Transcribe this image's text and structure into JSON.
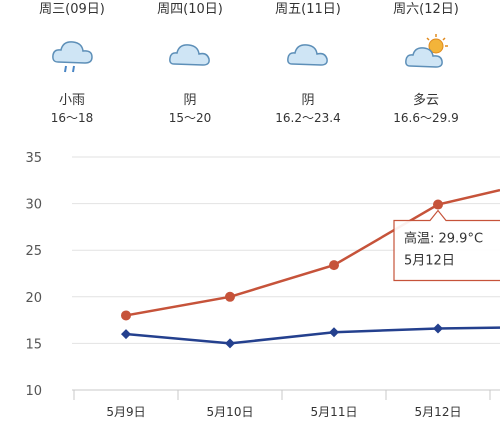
{
  "forecast": [
    {
      "day": "周三(09日)",
      "condition": "小雨",
      "temp": "16～18",
      "icon": "cloud-rain-icon"
    },
    {
      "day": "周四(10日)",
      "condition": "阴",
      "temp": "15～20",
      "icon": "cloud-icon"
    },
    {
      "day": "周五(11日)",
      "condition": "阴",
      "temp": "16.2～23.4",
      "icon": "cloud-icon"
    },
    {
      "day": "周六(12日)",
      "condition": "多云",
      "temp": "16.6～29.9",
      "icon": "sun-cloud-icon"
    }
  ],
  "chart_data": {
    "type": "line",
    "categories": [
      "5月9日",
      "5月10日",
      "5月11日",
      "5月12日"
    ],
    "ylim": [
      10,
      35
    ],
    "yticks": [
      10,
      15,
      20,
      25,
      30,
      35
    ],
    "grid": true,
    "series": [
      {
        "name": "高温",
        "values": [
          18,
          20,
          23.4,
          29.9
        ],
        "color": "#c6533a"
      },
      {
        "values": [
          16,
          15,
          16.2,
          16.6
        ],
        "color": "#24408e"
      }
    ],
    "tooltip": {
      "line1": "高温: 29.9°C",
      "line2": "5月12日"
    }
  }
}
